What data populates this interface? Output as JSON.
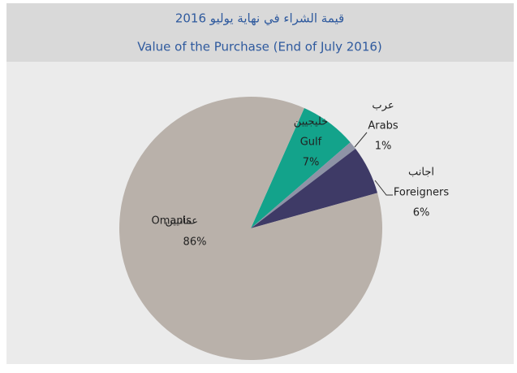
{
  "chart_data": {
    "type": "pie",
    "title": "قيمة الشراء في نهاية يوليو 2016",
    "subtitle": "Value of the Purchase (End of July 2016)",
    "categories": [
      "Gulf",
      "Arabs",
      "Foreigners",
      "Omanis"
    ],
    "categories_ar": [
      "خليجيين",
      "عرب",
      "اجانب",
      "عمانيين"
    ],
    "values": [
      7,
      1,
      6,
      86
    ],
    "value_labels": [
      "7%",
      "1%",
      "6%",
      "86%"
    ],
    "colors": [
      "#13a38b",
      "#8e93a6",
      "#3e3a66",
      "#b9b1aa"
    ]
  }
}
